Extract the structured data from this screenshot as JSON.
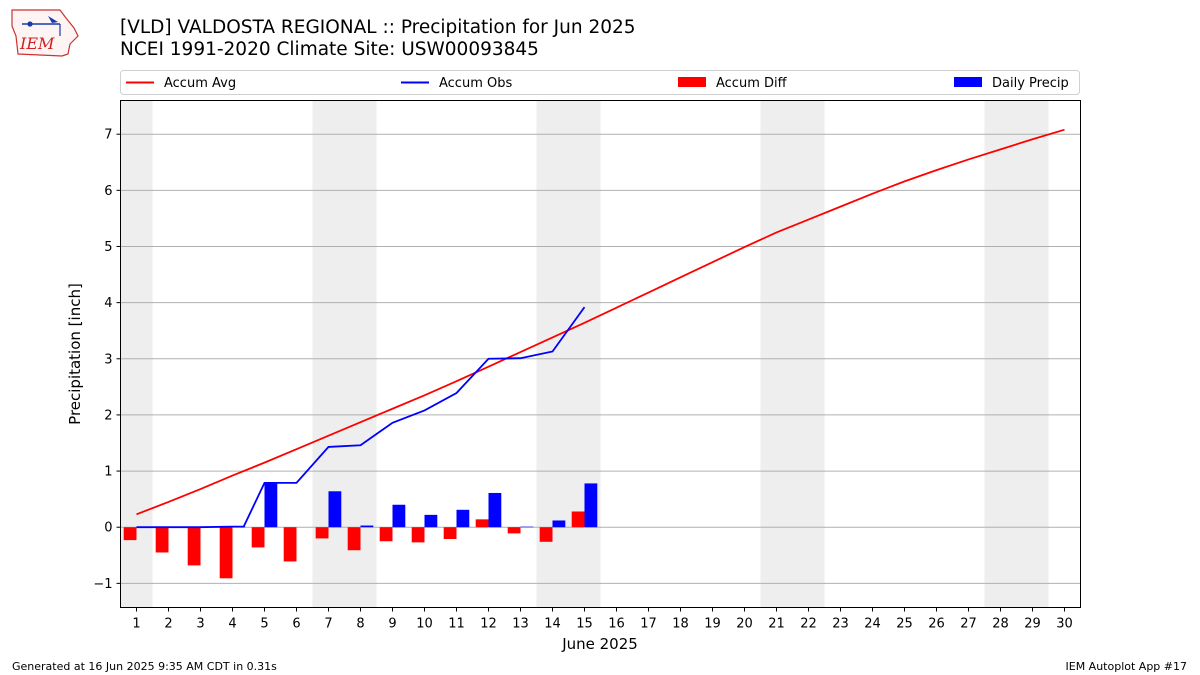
{
  "header": {
    "title_line1": "[VLD] VALDOSTA REGIONAL :: Precipitation for Jun 2025",
    "title_line2": "NCEI 1991-2020 Climate Site: USW00093845"
  },
  "logo": {
    "text": "IEM"
  },
  "footer": {
    "generated": "Generated at 16 Jun 2025 9:35 AM CDT in 0.31s",
    "app": "IEM Autoplot App #17"
  },
  "chart_data": {
    "type": "bar",
    "xlabel": "June 2025",
    "ylabel": "Precipitation [inch]",
    "xlim": [
      0.5,
      30.5
    ],
    "ylim": [
      -1.43,
      7.6
    ],
    "yticks": [
      -1,
      0,
      1,
      2,
      3,
      4,
      5,
      6,
      7
    ],
    "ytick_labels": [
      "−1",
      "0",
      "1",
      "2",
      "3",
      "4",
      "5",
      "6",
      "7"
    ],
    "xticks": [
      1,
      2,
      3,
      4,
      5,
      6,
      7,
      8,
      9,
      10,
      11,
      12,
      13,
      14,
      15,
      16,
      17,
      18,
      19,
      20,
      21,
      22,
      23,
      24,
      25,
      26,
      27,
      28,
      29,
      30
    ],
    "grid": "horizontal",
    "legend_position": "top",
    "weekend_shading": [
      [
        0.5,
        1.5
      ],
      [
        6.5,
        8.5
      ],
      [
        13.5,
        15.5
      ],
      [
        20.5,
        22.5
      ],
      [
        27.5,
        29.5
      ]
    ],
    "series": [
      {
        "name": "Accum Avg",
        "kind": "line",
        "color": "#ff0000",
        "x": [
          1,
          2,
          3,
          4,
          5,
          6,
          7,
          8,
          9,
          10,
          11,
          12,
          13,
          14,
          15,
          16,
          17,
          18,
          19,
          20,
          21,
          22,
          23,
          24,
          25,
          26,
          27,
          28,
          29,
          30
        ],
        "values": [
          0.23,
          0.45,
          0.68,
          0.92,
          1.15,
          1.39,
          1.63,
          1.87,
          2.11,
          2.35,
          2.6,
          2.86,
          3.12,
          3.38,
          3.64,
          3.91,
          4.18,
          4.45,
          4.72,
          4.99,
          5.25,
          5.48,
          5.71,
          5.94,
          6.16,
          6.36,
          6.55,
          6.73,
          6.91,
          7.08
        ]
      },
      {
        "name": "Accum Obs",
        "kind": "line",
        "color": "#0000ff",
        "x": [
          1,
          2,
          3,
          4,
          4.35,
          5,
          6,
          7,
          8,
          9,
          10,
          11,
          12,
          13,
          14,
          15
        ],
        "values": [
          0.0,
          0.0,
          0.0,
          0.01,
          0.01,
          0.79,
          0.79,
          1.43,
          1.46,
          1.86,
          2.08,
          2.39,
          3.0,
          3.01,
          3.13,
          3.92
        ]
      },
      {
        "name": "Accum Diff",
        "kind": "bar",
        "color": "#ff0000",
        "offset": -0.2,
        "x": [
          1,
          2,
          3,
          4,
          5,
          6,
          7,
          8,
          9,
          10,
          11,
          12,
          13,
          14,
          15
        ],
        "values": [
          -0.23,
          -0.45,
          -0.68,
          -0.91,
          -0.36,
          -0.61,
          -0.2,
          -0.41,
          -0.25,
          -0.27,
          -0.21,
          0.14,
          -0.11,
          -0.26,
          0.28
        ]
      },
      {
        "name": "Daily Precip",
        "kind": "bar",
        "color": "#0000ff",
        "offset": 0.2,
        "x": [
          1,
          2,
          3,
          4,
          5,
          6,
          7,
          8,
          9,
          10,
          11,
          12,
          13,
          14,
          15
        ],
        "values": [
          0.0,
          0.0,
          0.0,
          0.01,
          0.78,
          0.0,
          0.64,
          0.03,
          0.4,
          0.22,
          0.31,
          0.61,
          0.01,
          0.12,
          0.78
        ]
      }
    ]
  }
}
